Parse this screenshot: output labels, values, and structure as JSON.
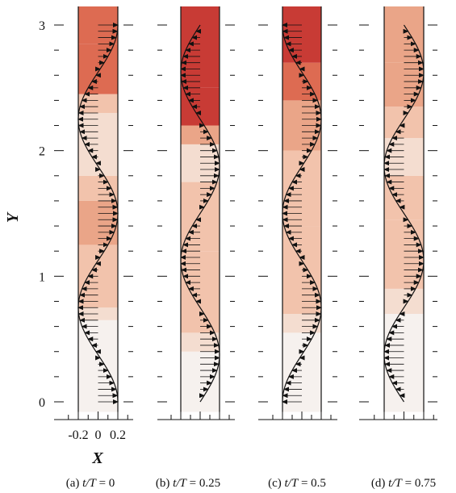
{
  "figure": {
    "colors": {
      "line": "#111111",
      "contour_ramp": [
        "#f6f1ee",
        "#f4ddd0",
        "#f2c3ac",
        "#eaa588",
        "#dd6b52",
        "#c83b35"
      ]
    }
  },
  "chart_data": [
    {
      "type": "line",
      "panel": "a",
      "caption_prefix": "(a) ",
      "caption_var": "t/T",
      "caption_value": " = 0",
      "phase": 0,
      "xlabel": "X",
      "ylabel": "Y",
      "x_ticks": [
        "-0.2",
        "0",
        "0.2"
      ],
      "y_ticks": [
        "0",
        "1",
        "2",
        "3"
      ],
      "ylim": [
        0,
        3
      ],
      "channel_x": [
        -0.2,
        0.2
      ],
      "profile_amplitude": 0.2,
      "profile_wavelength": 1.5,
      "profile_description": "u(y) = 0.2·cos(2π(y/1.5 − t/T))",
      "contour_levels": [
        {
          "y": [
            0.0,
            0.65
          ],
          "level": 0
        },
        {
          "y": [
            0.65,
            0.75
          ],
          "level": 1
        },
        {
          "y": [
            0.75,
            1.25
          ],
          "level": 2
        },
        {
          "y": [
            1.25,
            1.6
          ],
          "level": 3
        },
        {
          "y": [
            1.6,
            1.8
          ],
          "level": 2
        },
        {
          "y": [
            1.8,
            2.3
          ],
          "level": 1
        },
        {
          "y": [
            2.3,
            2.45
          ],
          "level": 2
        },
        {
          "y": [
            2.45,
            2.85
          ],
          "level": 4
        },
        {
          "y": [
            2.85,
            3.0
          ],
          "level": 4
        }
      ]
    },
    {
      "type": "line",
      "panel": "b",
      "caption_prefix": "(b) ",
      "caption_var": "t/T",
      "caption_value": " = 0.25",
      "phase": 0.25,
      "ylim": [
        0,
        3
      ],
      "channel_x": [
        -0.2,
        0.2
      ],
      "profile_amplitude": 0.2,
      "profile_wavelength": 1.5,
      "contour_levels": [
        {
          "y": [
            0.0,
            0.4
          ],
          "level": 0
        },
        {
          "y": [
            0.4,
            0.55
          ],
          "level": 1
        },
        {
          "y": [
            0.55,
            1.2
          ],
          "level": 2
        },
        {
          "y": [
            1.2,
            1.75
          ],
          "level": 2
        },
        {
          "y": [
            1.75,
            2.05
          ],
          "level": 1
        },
        {
          "y": [
            2.05,
            2.2
          ],
          "level": 3
        },
        {
          "y": [
            2.2,
            2.5
          ],
          "level": 5
        },
        {
          "y": [
            2.5,
            3.0
          ],
          "level": 5
        }
      ]
    },
    {
      "type": "line",
      "panel": "c",
      "caption_prefix": "(c) ",
      "caption_var": "t/T",
      "caption_value": " = 0.5",
      "phase": 0.5,
      "ylim": [
        0,
        3
      ],
      "channel_x": [
        -0.2,
        0.2
      ],
      "profile_amplitude": 0.2,
      "profile_wavelength": 1.5,
      "contour_levels": [
        {
          "y": [
            0.0,
            0.55
          ],
          "level": 0
        },
        {
          "y": [
            0.55,
            0.7
          ],
          "level": 1
        },
        {
          "y": [
            0.7,
            1.4
          ],
          "level": 2
        },
        {
          "y": [
            1.4,
            2.0
          ],
          "level": 2
        },
        {
          "y": [
            2.0,
            2.4
          ],
          "level": 3
        },
        {
          "y": [
            2.4,
            2.7
          ],
          "level": 4
        },
        {
          "y": [
            2.7,
            3.0
          ],
          "level": 5
        }
      ]
    },
    {
      "type": "line",
      "panel": "d",
      "caption_prefix": "(d) ",
      "caption_var": "t/T",
      "caption_value": " = 0.75",
      "phase": 0.75,
      "ylim": [
        0,
        3
      ],
      "channel_x": [
        -0.2,
        0.2
      ],
      "profile_amplitude": 0.2,
      "profile_wavelength": 1.5,
      "contour_levels": [
        {
          "y": [
            0.0,
            0.7
          ],
          "level": 0
        },
        {
          "y": [
            0.7,
            0.9
          ],
          "level": 1
        },
        {
          "y": [
            0.9,
            1.45
          ],
          "level": 2
        },
        {
          "y": [
            1.45,
            1.8
          ],
          "level": 2
        },
        {
          "y": [
            1.8,
            2.1
          ],
          "level": 1
        },
        {
          "y": [
            2.1,
            2.35
          ],
          "level": 2
        },
        {
          "y": [
            2.35,
            2.7
          ],
          "level": 3
        },
        {
          "y": [
            2.7,
            3.0
          ],
          "level": 3
        }
      ]
    }
  ]
}
